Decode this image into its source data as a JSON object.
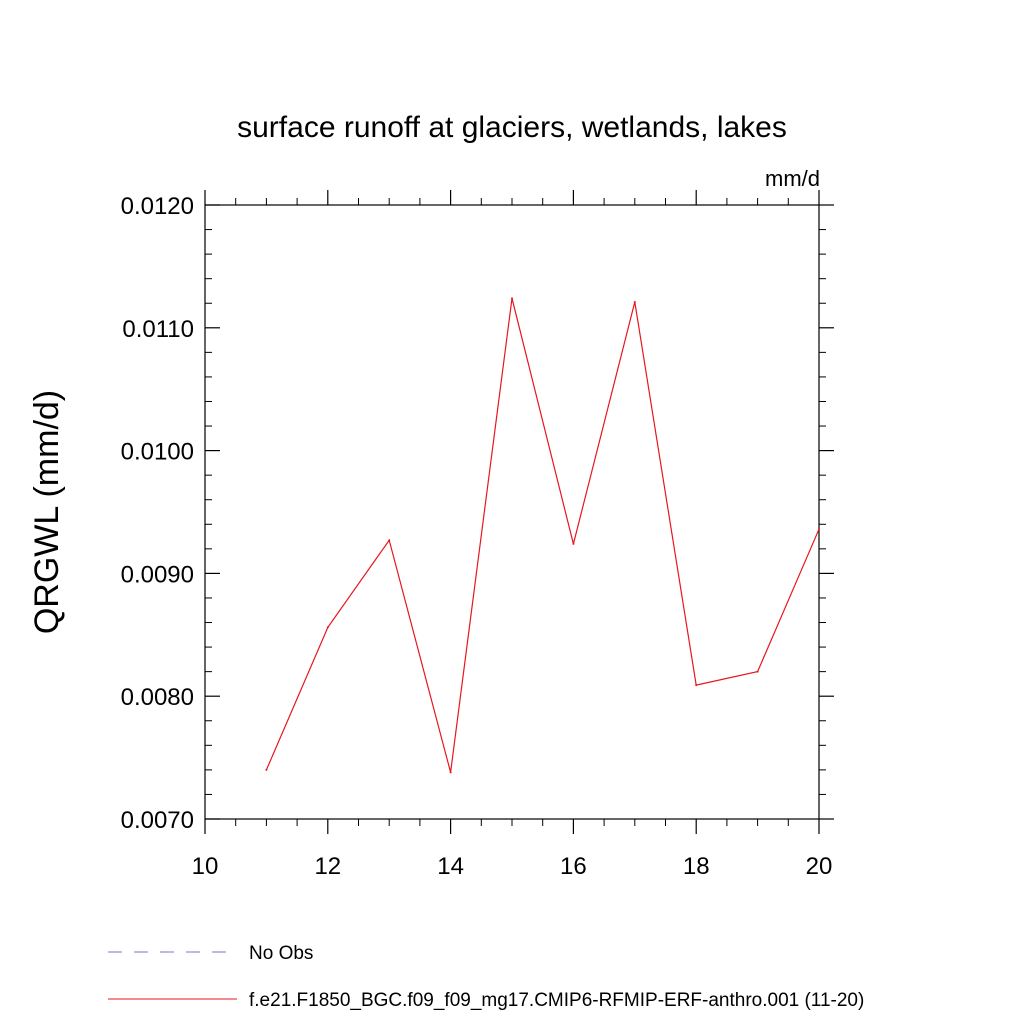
{
  "chart_data": {
    "type": "line",
    "title": "surface runoff at glaciers, wetlands, lakes",
    "units": "mm/d",
    "ylabel": "QRGWL  (mm/d)",
    "xlabel": "",
    "xlim": [
      10,
      20
    ],
    "ylim": [
      0.007,
      0.012
    ],
    "x_ticks": [
      10,
      12,
      14,
      16,
      18,
      20
    ],
    "x_tick_labels": [
      "10",
      "12",
      "14",
      "16",
      "18",
      "20"
    ],
    "y_ticks": [
      0.007,
      0.008,
      0.009,
      0.01,
      0.011,
      0.012
    ],
    "y_tick_labels": [
      "0.0070",
      "0.0080",
      "0.0090",
      "0.0100",
      "0.0110",
      "0.0120"
    ],
    "grid": false,
    "series": [
      {
        "name": "f.e21.F1850_BGC.f09_f09_mg17.CMIP6-RFMIP-ERF-anthro.001 (11-20)",
        "color": "#e8161e",
        "style": "solid",
        "x": [
          11,
          12,
          13,
          14,
          15,
          16,
          17,
          18,
          19,
          20
        ],
        "y": [
          0.0074,
          0.00856,
          0.00927,
          0.00738,
          0.01124,
          0.00924,
          0.01121,
          0.00809,
          0.0082,
          0.00936
        ]
      }
    ],
    "legend": {
      "placement": "bottom-left",
      "entries": [
        {
          "label": "No Obs",
          "color": "#7b73c4",
          "style": "dashed"
        },
        {
          "label": "f.e21.F1850_BGC.f09_f09_mg17.CMIP6-RFMIP-ERF-anthro.001 (11-20)",
          "color": "#e8161e",
          "style": "solid"
        }
      ]
    }
  }
}
